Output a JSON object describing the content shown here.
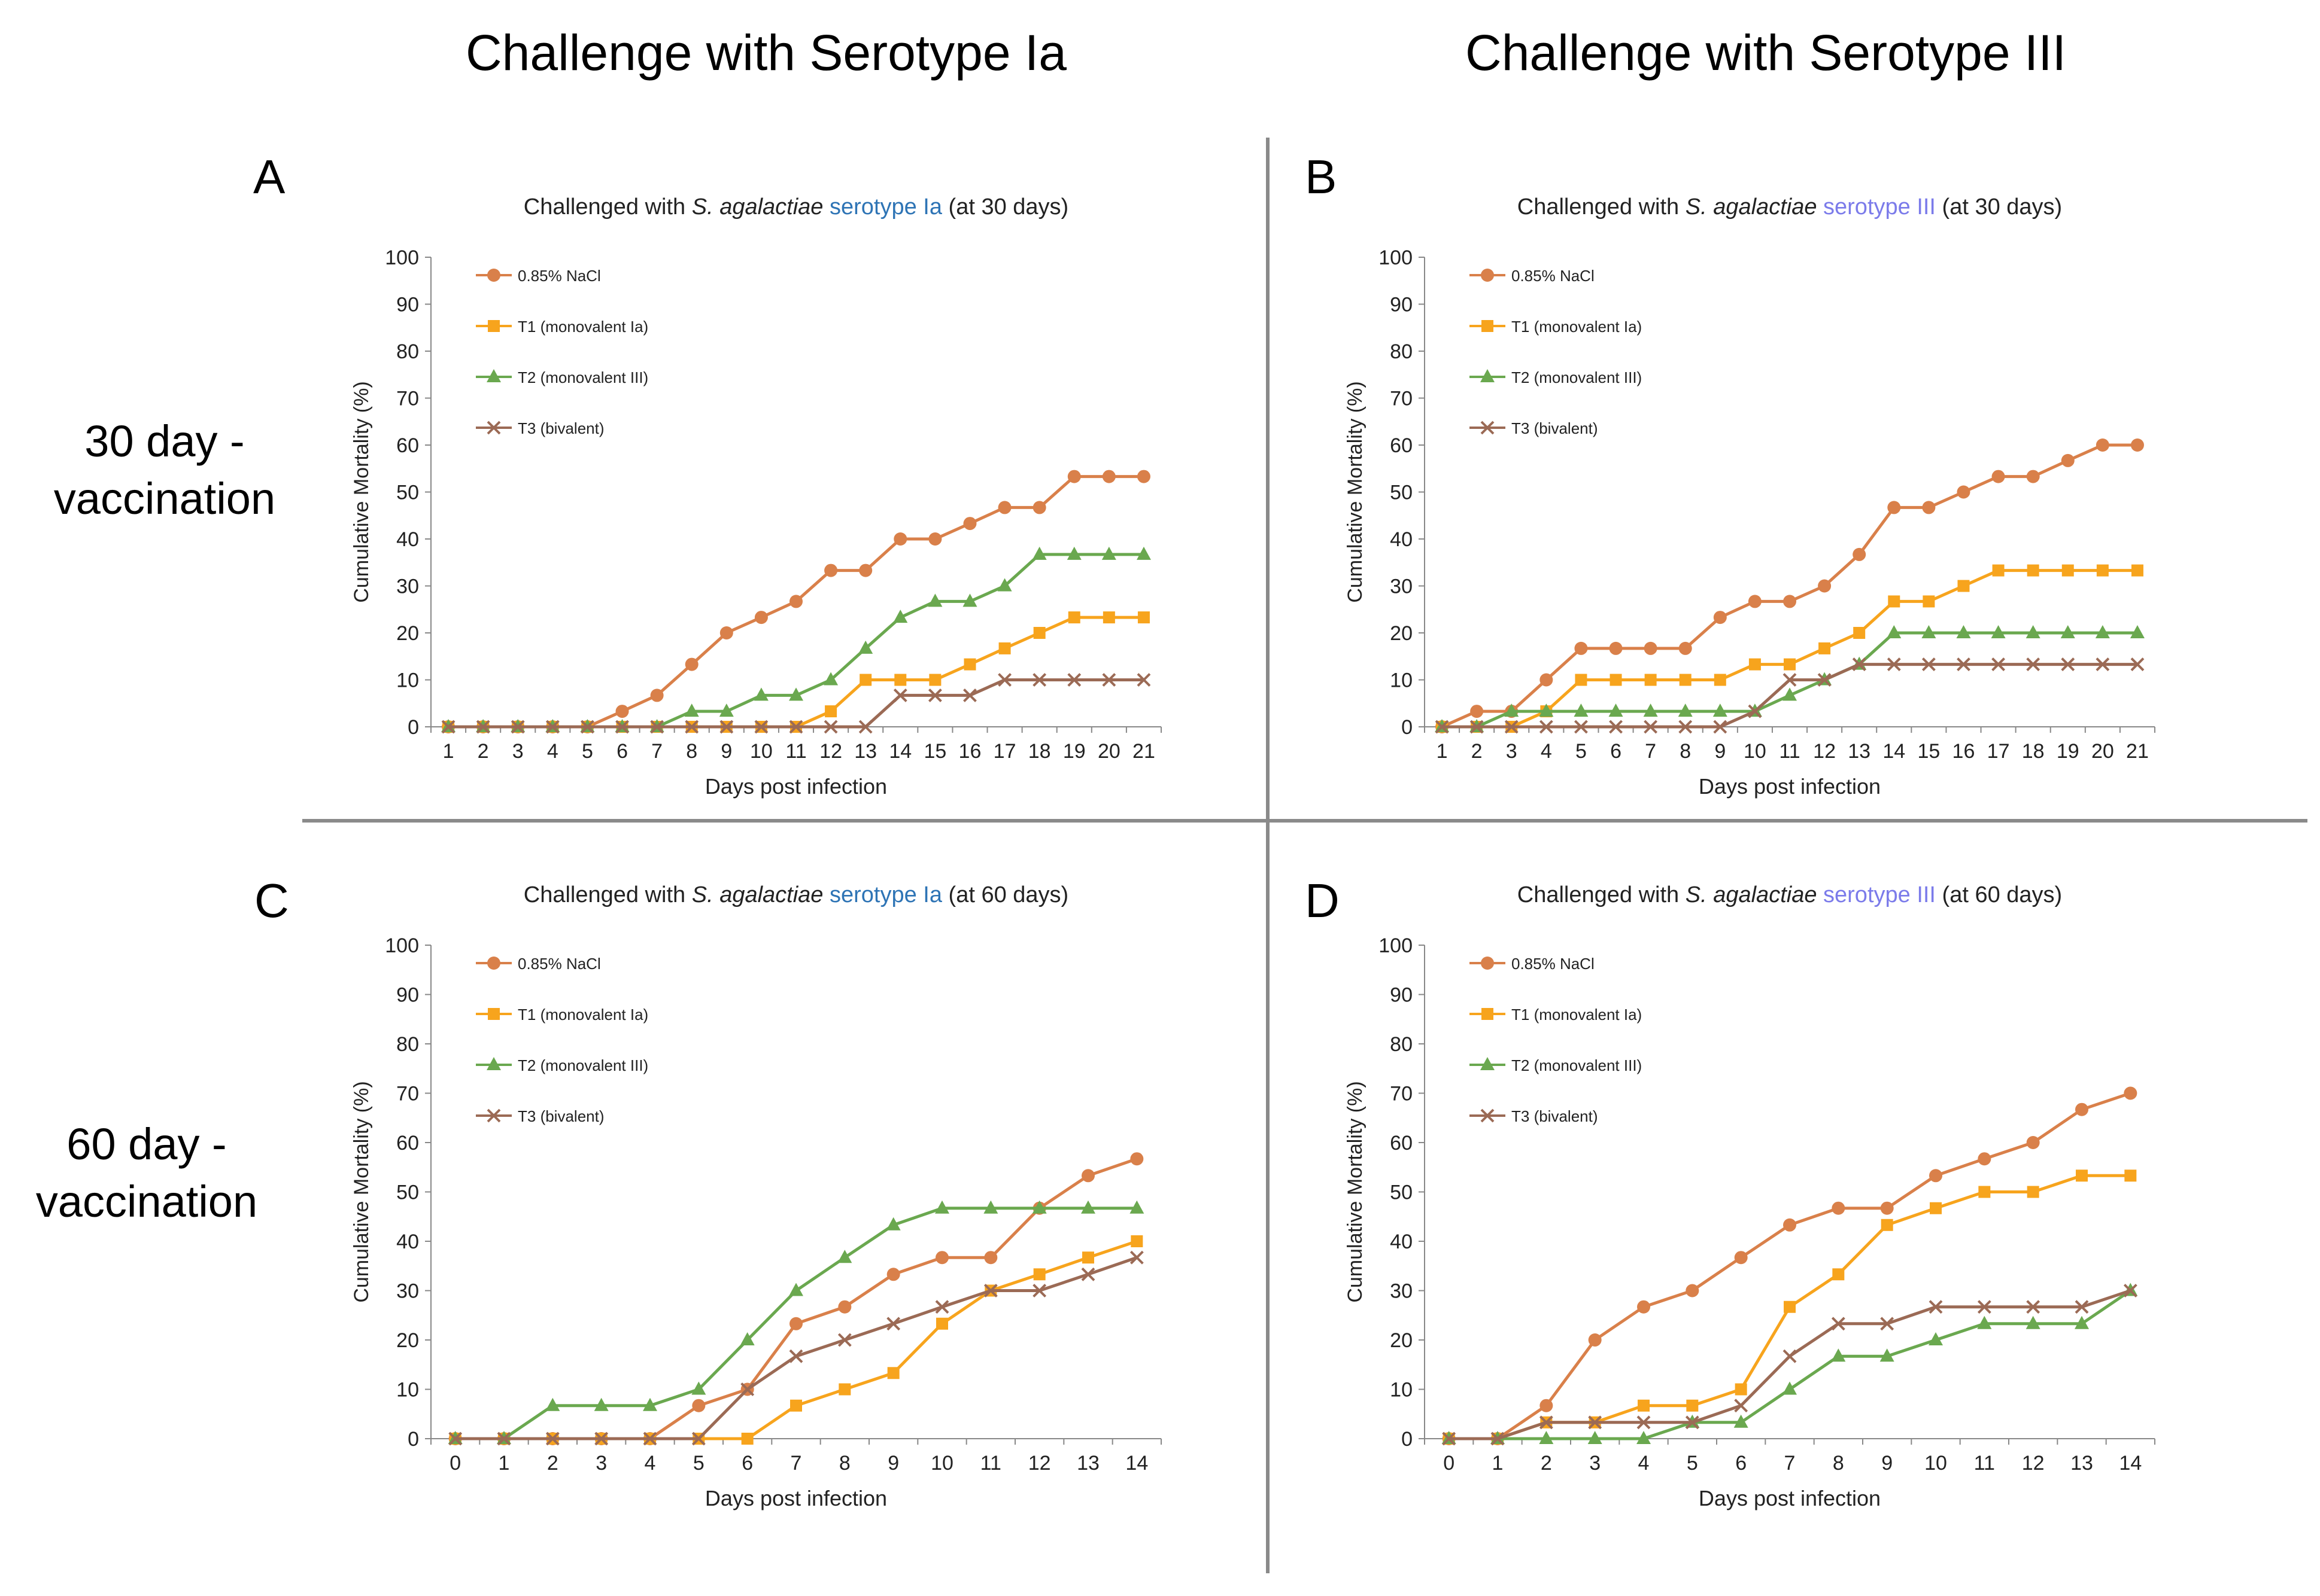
{
  "column_headers": [
    "Challenge with Serotype Ia",
    "Challenge with Serotype III"
  ],
  "row_labels": [
    {
      "line1": "30 day -",
      "line2": "vaccination"
    },
    {
      "line1": "60 day -",
      "line2": "vaccination"
    }
  ],
  "panel_letters": [
    "A",
    "B",
    "C",
    "D"
  ],
  "colors": {
    "nacl": "#d9804a",
    "t1": "#f7a41d",
    "t2": "#6aa84f",
    "t3": "#9b6a55",
    "serotype_ia_blue": "#2e74b5",
    "serotype_iii_blue": "#7b7bea",
    "divider": "#8a8a8a"
  },
  "chart_data": [
    {
      "type": "line",
      "title": {
        "prefix": "Challenged with ",
        "species": "S. agalactiae",
        "serotype": "serotype Ia",
        "suffix": " (at 30 days)"
      },
      "xlabel": "Days post infection",
      "ylabel": "Cumulative Mortality (%)",
      "ylim": [
        0,
        100
      ],
      "yticks": [
        0,
        10,
        20,
        30,
        40,
        50,
        60,
        70,
        80,
        90,
        100
      ],
      "x": [
        1,
        2,
        3,
        4,
        5,
        6,
        7,
        8,
        9,
        10,
        11,
        12,
        13,
        14,
        15,
        16,
        17,
        18,
        19,
        20,
        21
      ],
      "series": [
        {
          "name": "0.85% NaCl",
          "marker": "circle",
          "values": [
            0,
            0,
            0,
            0,
            0,
            3.3,
            6.7,
            13.3,
            20,
            23.3,
            26.7,
            33.3,
            33.3,
            40,
            40,
            43.3,
            46.7,
            46.7,
            53.3,
            53.3,
            53.3
          ]
        },
        {
          "name": "T1 (monovalent Ia)",
          "marker": "square",
          "values": [
            0,
            0,
            0,
            0,
            0,
            0,
            0,
            0,
            0,
            0,
            0,
            3.3,
            10,
            10,
            10,
            13.3,
            16.7,
            20,
            23.3,
            23.3,
            23.3
          ]
        },
        {
          "name": "T2 (monovalent III)",
          "marker": "triangle",
          "values": [
            0,
            0,
            0,
            0,
            0,
            0,
            0,
            3.3,
            3.3,
            6.7,
            6.7,
            10,
            16.7,
            23.3,
            26.7,
            26.7,
            30,
            36.7,
            36.7,
            36.7,
            36.7
          ]
        },
        {
          "name": "T3 (bivalent)",
          "marker": "x",
          "values": [
            0,
            0,
            0,
            0,
            0,
            0,
            0,
            0,
            0,
            0,
            0,
            0,
            0,
            6.7,
            6.7,
            6.7,
            10,
            10,
            10,
            10,
            10
          ]
        }
      ]
    },
    {
      "type": "line",
      "title": {
        "prefix": "Challenged with ",
        "species": "S. agalactiae",
        "serotype": "serotype III",
        "suffix": " (at 30 days)"
      },
      "xlabel": "Days post infection",
      "ylabel": "Cumulative Mortality (%)",
      "ylim": [
        0,
        100
      ],
      "yticks": [
        0,
        10,
        20,
        30,
        40,
        50,
        60,
        70,
        80,
        90,
        100
      ],
      "x": [
        1,
        2,
        3,
        4,
        5,
        6,
        7,
        8,
        9,
        10,
        11,
        12,
        13,
        14,
        15,
        16,
        17,
        18,
        19,
        20,
        21
      ],
      "series": [
        {
          "name": "0.85% NaCl",
          "marker": "circle",
          "values": [
            0,
            3.3,
            3.3,
            10,
            16.7,
            16.7,
            16.7,
            16.7,
            23.3,
            26.7,
            26.7,
            30,
            36.7,
            46.7,
            46.7,
            50,
            53.3,
            53.3,
            56.7,
            60,
            60
          ]
        },
        {
          "name": "T1 (monovalent Ia)",
          "marker": "square",
          "values": [
            0,
            0,
            0,
            3.3,
            10,
            10,
            10,
            10,
            10,
            13.3,
            13.3,
            16.7,
            20,
            26.7,
            26.7,
            30,
            33.3,
            33.3,
            33.3,
            33.3,
            33.3
          ]
        },
        {
          "name": "T2 (monovalent III)",
          "marker": "triangle",
          "values": [
            0,
            0,
            3.3,
            3.3,
            3.3,
            3.3,
            3.3,
            3.3,
            3.3,
            3.3,
            6.7,
            10,
            13.3,
            20,
            20,
            20,
            20,
            20,
            20,
            20,
            20
          ]
        },
        {
          "name": "T3 (bivalent)",
          "marker": "x",
          "values": [
            0,
            0,
            0,
            0,
            0,
            0,
            0,
            0,
            0,
            3.3,
            10,
            10,
            13.3,
            13.3,
            13.3,
            13.3,
            13.3,
            13.3,
            13.3,
            13.3,
            13.3
          ]
        }
      ]
    },
    {
      "type": "line",
      "title": {
        "prefix": "Challenged with ",
        "species": "S. agalactiae",
        "serotype": "serotype Ia",
        "suffix": " (at 60 days)"
      },
      "xlabel": "Days post infection",
      "ylabel": "Cumulative Mortality (%)",
      "ylim": [
        0,
        100
      ],
      "yticks": [
        0,
        10,
        20,
        30,
        40,
        50,
        60,
        70,
        80,
        90,
        100
      ],
      "x": [
        0,
        1,
        2,
        3,
        4,
        5,
        6,
        7,
        8,
        9,
        10,
        11,
        12,
        13,
        14
      ],
      "series": [
        {
          "name": "0.85% NaCl",
          "marker": "circle",
          "values": [
            0,
            0,
            0,
            0,
            0,
            6.7,
            10,
            23.3,
            26.7,
            33.3,
            36.7,
            36.7,
            46.7,
            53.3,
            56.7
          ]
        },
        {
          "name": "T1 (monovalent Ia)",
          "marker": "square",
          "values": [
            0,
            0,
            0,
            0,
            0,
            0,
            0,
            6.7,
            10,
            13.3,
            23.3,
            30,
            33.3,
            36.7,
            40
          ]
        },
        {
          "name": "T2 (monovalent III)",
          "marker": "triangle",
          "values": [
            0,
            0,
            6.7,
            6.7,
            6.7,
            10,
            20,
            30,
            36.7,
            43.3,
            46.7,
            46.7,
            46.7,
            46.7,
            46.7
          ]
        },
        {
          "name": "T3 (bivalent)",
          "marker": "x",
          "values": [
            0,
            0,
            0,
            0,
            0,
            0,
            10,
            16.7,
            20,
            23.3,
            26.7,
            30,
            30,
            33.3,
            36.7
          ]
        }
      ]
    },
    {
      "type": "line",
      "title": {
        "prefix": "Challenged with ",
        "species": "S. agalactiae",
        "serotype": "serotype III",
        "suffix": " (at 60 days)"
      },
      "xlabel": "Days post infection",
      "ylabel": "Cumulative Mortality (%)",
      "ylim": [
        0,
        100
      ],
      "yticks": [
        0,
        10,
        20,
        30,
        40,
        50,
        60,
        70,
        80,
        90,
        100
      ],
      "x": [
        0,
        1,
        2,
        3,
        4,
        5,
        6,
        7,
        8,
        9,
        10,
        11,
        12,
        13,
        14
      ],
      "series": [
        {
          "name": "0.85% NaCl",
          "marker": "circle",
          "values": [
            0,
            0,
            6.7,
            20,
            26.7,
            30,
            36.7,
            43.3,
            46.7,
            46.7,
            53.3,
            56.7,
            60,
            66.7,
            70
          ]
        },
        {
          "name": "T1 (monovalent Ia)",
          "marker": "square",
          "values": [
            0,
            0,
            3.3,
            3.3,
            6.7,
            6.7,
            10,
            26.7,
            33.3,
            43.3,
            46.7,
            50,
            50,
            53.3,
            53.3
          ]
        },
        {
          "name": "T2 (monovalent III)",
          "marker": "triangle",
          "values": [
            0,
            0,
            0,
            0,
            0,
            3.3,
            3.3,
            10,
            16.7,
            16.7,
            20,
            23.3,
            23.3,
            23.3,
            30
          ]
        },
        {
          "name": "T3 (bivalent)",
          "marker": "x",
          "values": [
            0,
            0,
            3.3,
            3.3,
            3.3,
            3.3,
            6.7,
            16.7,
            23.3,
            23.3,
            26.7,
            26.7,
            26.7,
            26.7,
            30
          ]
        }
      ]
    }
  ]
}
